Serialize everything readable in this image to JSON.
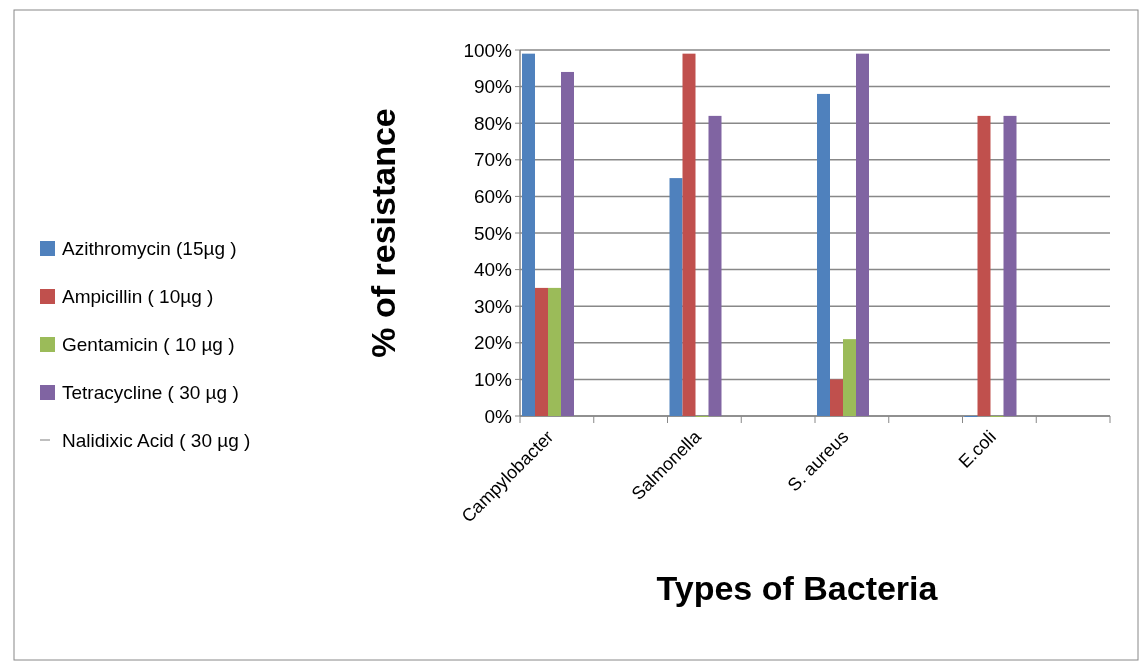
{
  "chart_data": {
    "type": "bar",
    "xlabel": "Types of Bacteria",
    "ylabel": "% of resistance",
    "categories": [
      "Campylobacter",
      "Salmonella",
      "S. aureus",
      "E.coli"
    ],
    "series": [
      {
        "name": "Azithromycin (15µg )",
        "color": "#4f81bd",
        "values": [
          99,
          65,
          88,
          0
        ]
      },
      {
        "name": "Ampicillin ( 10µg )",
        "color": "#c0504d",
        "values": [
          35,
          99,
          10,
          82
        ]
      },
      {
        "name": "Gentamicin ( 10 µg )",
        "color": "#9bbb59",
        "values": [
          35,
          0,
          21,
          0
        ]
      },
      {
        "name": "Tetracycline ( 30 µg )",
        "color": "#8064a2",
        "values": [
          94,
          82,
          99,
          82
        ]
      },
      {
        "name": "Nalidixic Acid ( 30 µg )",
        "color": "#bfbfbf",
        "values": [
          null,
          null,
          null,
          null
        ]
      }
    ],
    "ylim": [
      0,
      100
    ],
    "yticks": [
      {
        "value": 0,
        "label": "0%"
      },
      {
        "value": 10,
        "label": "10%"
      },
      {
        "value": 20,
        "label": "20%"
      },
      {
        "value": 30,
        "label": "30%"
      },
      {
        "value": 40,
        "label": "40%"
      },
      {
        "value": 50,
        "label": "50%"
      },
      {
        "value": 60,
        "label": "60%"
      },
      {
        "value": 70,
        "label": "70%"
      },
      {
        "value": 80,
        "label": "80%"
      },
      {
        "value": 90,
        "label": "90%"
      },
      {
        "value": 100,
        "label": "100%"
      }
    ],
    "grid": "y",
    "legend": "left"
  }
}
